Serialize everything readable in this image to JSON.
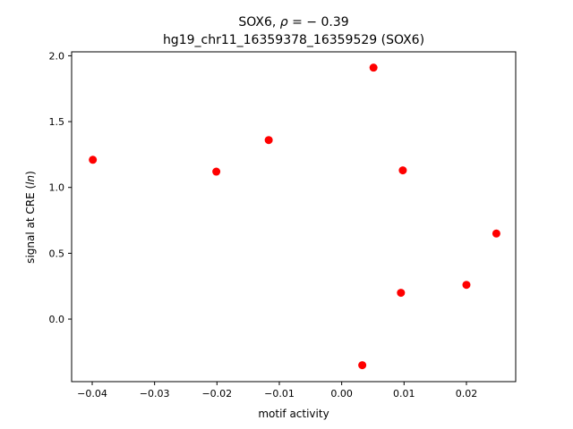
{
  "chart_data": {
    "type": "scatter",
    "title_line1_prefix": "SOX6, ",
    "title_line1_rho": "ρ",
    "title_line1_suffix": " = − 0.39",
    "title_line2": "hg19_chr11_16359378_16359529 (SOX6)",
    "xlabel": "motif activity",
    "ylabel_prefix": "signal at CRE (",
    "ylabel_italic": "ln",
    "ylabel_suffix": ")",
    "xlim": [
      -0.0433,
      0.0279
    ],
    "ylim": [
      -0.475,
      2.03
    ],
    "xticks": [
      -0.04,
      -0.03,
      -0.02,
      -0.01,
      0.0,
      0.01,
      0.02
    ],
    "xtick_labels": [
      "−0.04",
      "−0.03",
      "−0.02",
      "−0.01",
      "0.00",
      "0.01",
      "0.02"
    ],
    "yticks": [
      0.0,
      0.5,
      1.0,
      1.5,
      2.0
    ],
    "ytick_labels": [
      "0.0",
      "0.5",
      "1.0",
      "1.5",
      "2.0"
    ],
    "marker_color": "#ff0000",
    "points": [
      {
        "x": -0.0399,
        "y": 1.21
      },
      {
        "x": -0.0201,
        "y": 1.12
      },
      {
        "x": -0.0117,
        "y": 1.36
      },
      {
        "x": 0.0033,
        "y": -0.35
      },
      {
        "x": 0.0051,
        "y": 1.91
      },
      {
        "x": 0.0095,
        "y": 0.2
      },
      {
        "x": 0.0098,
        "y": 1.13
      },
      {
        "x": 0.02,
        "y": 0.26
      },
      {
        "x": 0.0248,
        "y": 0.65
      }
    ]
  }
}
